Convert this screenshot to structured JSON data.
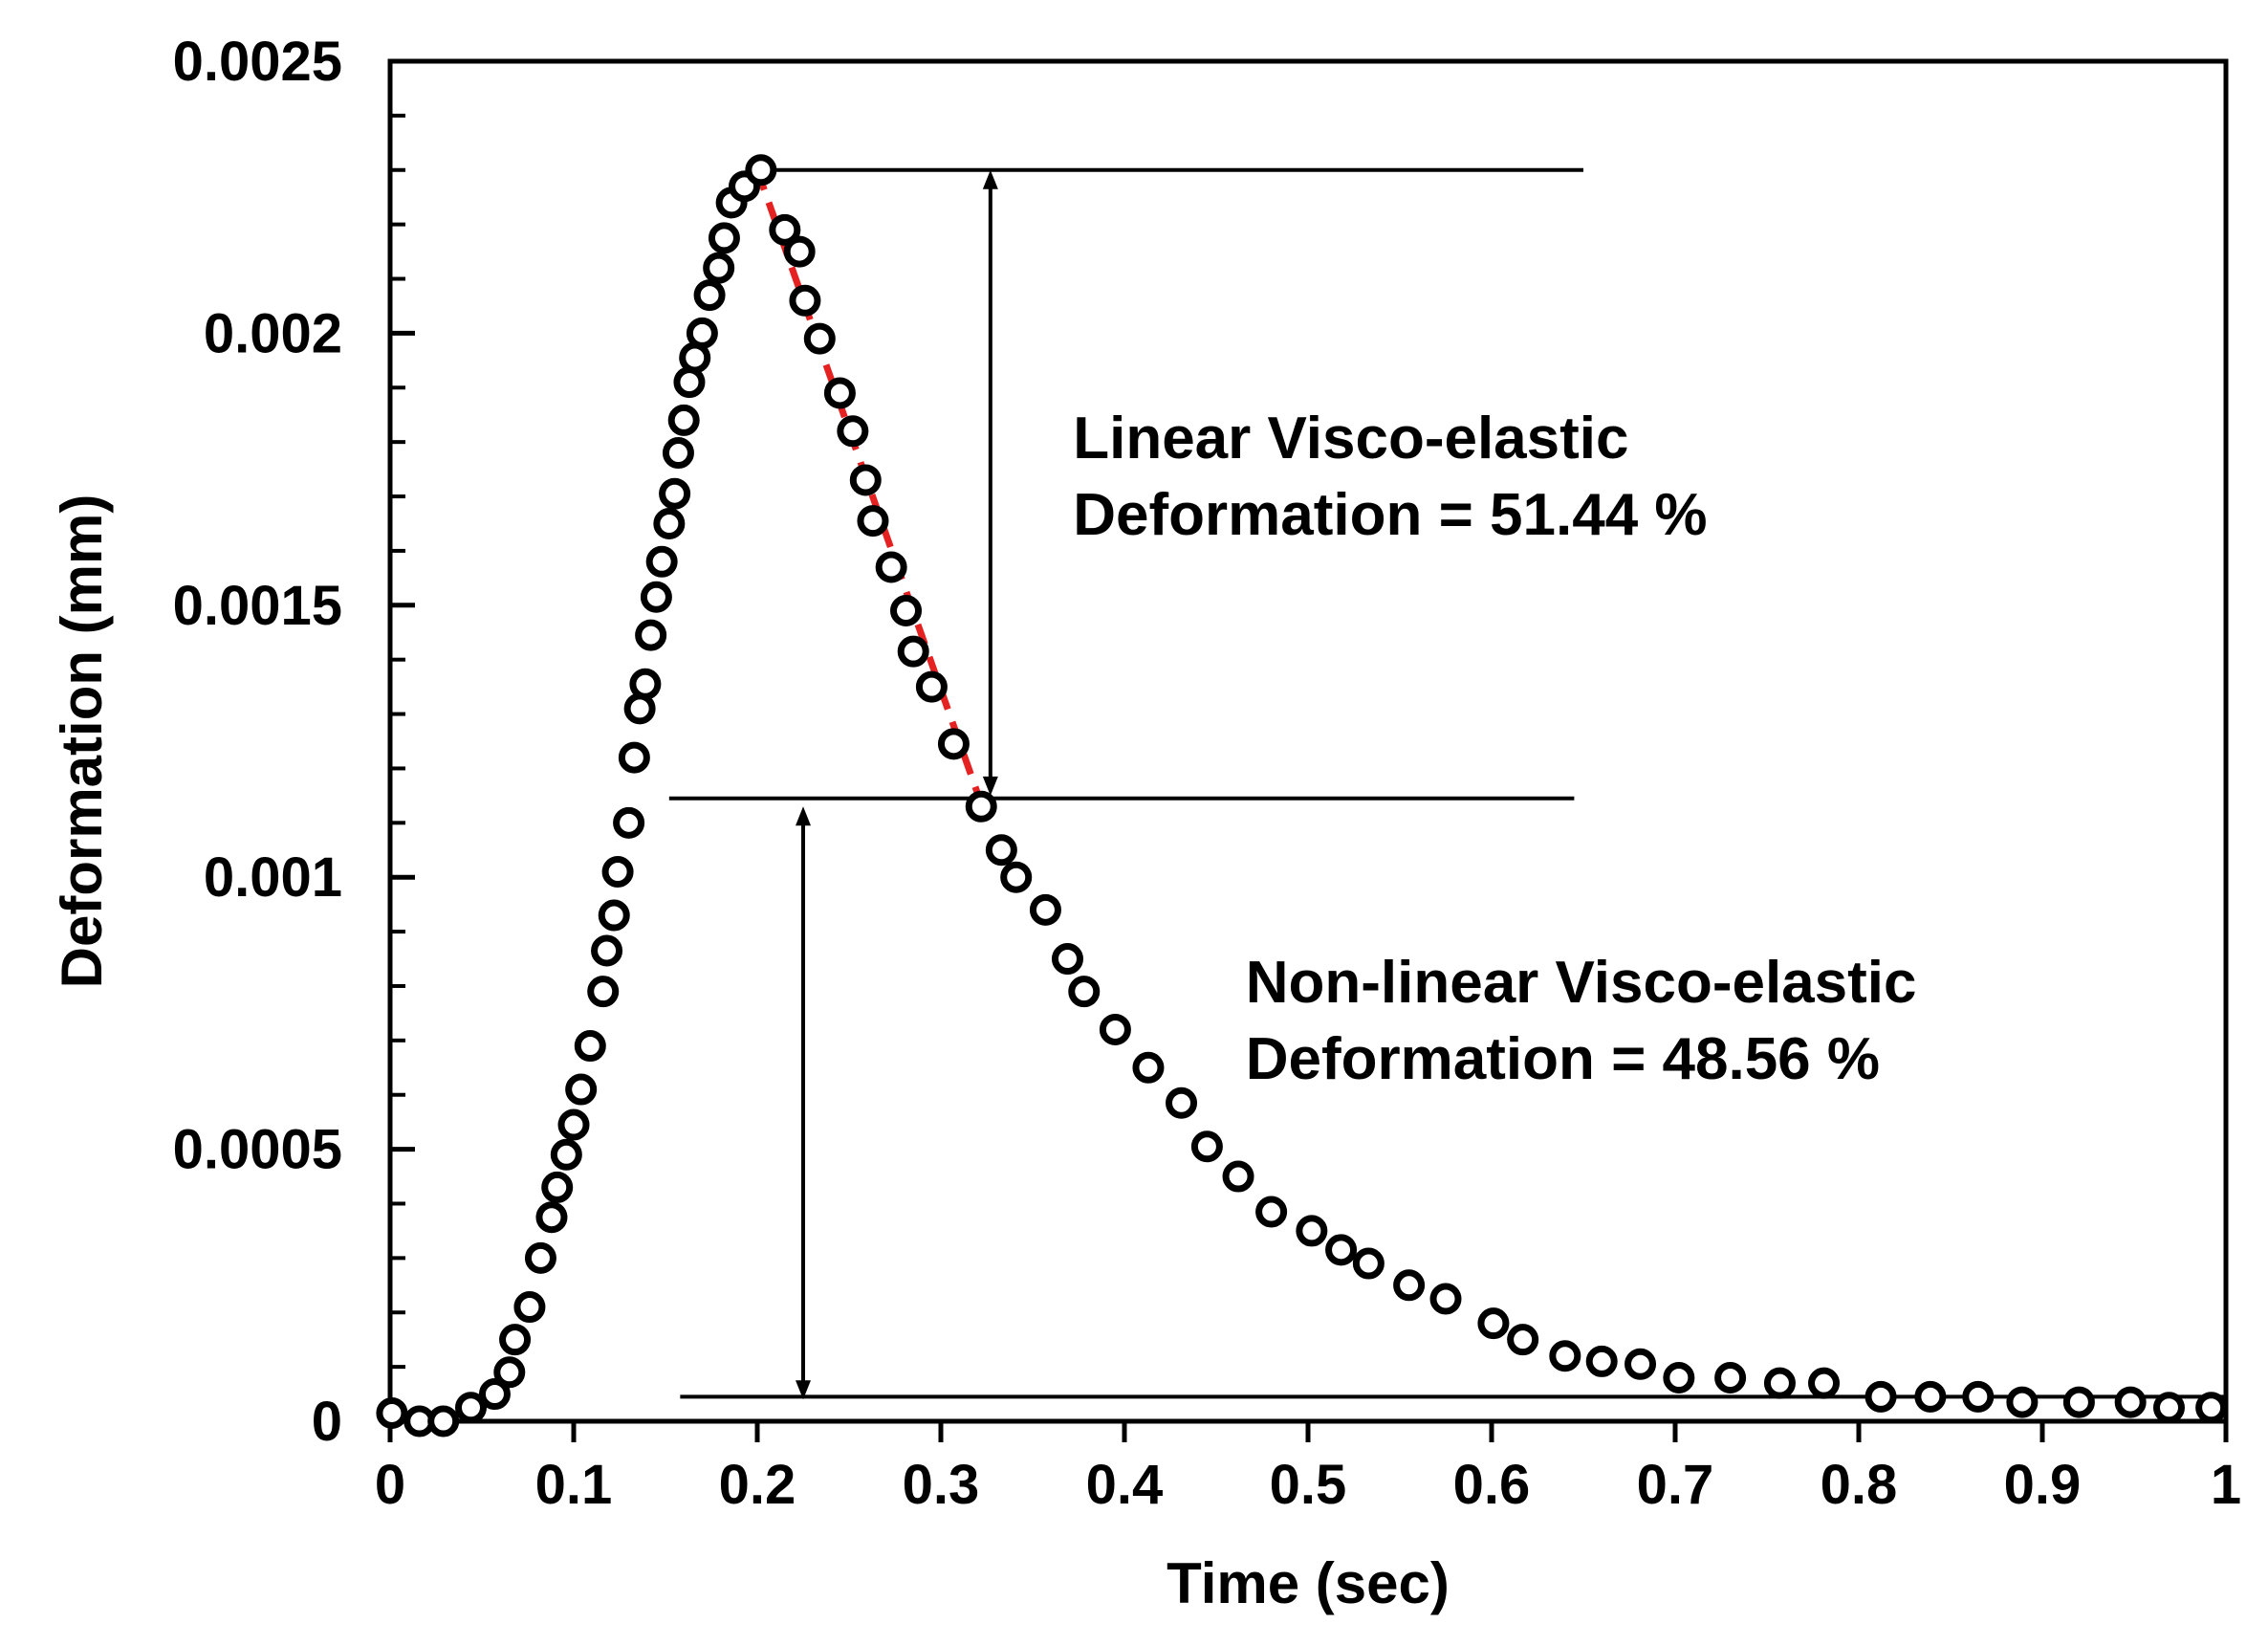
{
  "chart_data": {
    "type": "scatter",
    "xlabel": "Time (sec)",
    "ylabel": "Deformation (mm)",
    "xlim": [
      0,
      1
    ],
    "ylim": [
      0,
      0.0025
    ],
    "xticks": [
      0,
      0.1,
      0.2,
      0.3,
      0.4,
      0.5,
      0.6,
      0.7,
      0.8,
      0.9,
      1
    ],
    "xtick_labels": [
      "0",
      "0.1",
      "0.2",
      "0.3",
      "0.4",
      "0.5",
      "0.6",
      "0.7",
      "0.8",
      "0.9",
      "1"
    ],
    "yticks": [
      0,
      0.0005,
      0.001,
      0.0015,
      0.002,
      0.0025
    ],
    "ytick_labels": [
      "0",
      "0.0005",
      "0.001",
      "0.0015",
      "0.002",
      "0.0025"
    ],
    "y_minor_step": 0.0001,
    "grid": false,
    "colors": {
      "markers": "#000000",
      "linear_fit": "#e52222",
      "annotations": "#000000"
    },
    "series": [
      {
        "name": "Deformation",
        "marker": "open-circle",
        "points": [
          [
            0.001,
            1.5e-05
          ],
          [
            0.016,
            0.0
          ],
          [
            0.029,
            0.0
          ],
          [
            0.044,
            2.5e-05
          ],
          [
            0.057,
            5e-05
          ],
          [
            0.065,
            9e-05
          ],
          [
            0.068,
            0.00015
          ],
          [
            0.076,
            0.00021
          ],
          [
            0.082,
            0.0003
          ],
          [
            0.088,
            0.000375
          ],
          [
            0.091,
            0.00043
          ],
          [
            0.096,
            0.00049
          ],
          [
            0.1,
            0.000545
          ],
          [
            0.104,
            0.00061
          ],
          [
            0.109,
            0.00069
          ],
          [
            0.116,
            0.00079
          ],
          [
            0.118,
            0.000865
          ],
          [
            0.122,
            0.00093
          ],
          [
            0.124,
            0.00101
          ],
          [
            0.13,
            0.0011
          ],
          [
            0.133,
            0.00122
          ],
          [
            0.136,
            0.00131
          ],
          [
            0.139,
            0.001355
          ],
          [
            0.142,
            0.001445
          ],
          [
            0.145,
            0.001515
          ],
          [
            0.148,
            0.00158
          ],
          [
            0.152,
            0.00165
          ],
          [
            0.155,
            0.001705
          ],
          [
            0.157,
            0.00178
          ],
          [
            0.16,
            0.00184
          ],
          [
            0.163,
            0.00191
          ],
          [
            0.166,
            0.001955
          ],
          [
            0.17,
            0.002
          ],
          [
            0.174,
            0.00207
          ],
          [
            0.179,
            0.00212
          ],
          [
            0.182,
            0.002175
          ],
          [
            0.186,
            0.00224
          ],
          [
            0.193,
            0.00227
          ],
          [
            0.202,
            0.0023
          ],
          [
            0.215,
            0.00219
          ],
          [
            0.223,
            0.00215
          ],
          [
            0.226,
            0.00206
          ],
          [
            0.234,
            0.00199
          ],
          [
            0.245,
            0.00189
          ],
          [
            0.252,
            0.00182
          ],
          [
            0.259,
            0.00173
          ],
          [
            0.263,
            0.001655
          ],
          [
            0.273,
            0.00157
          ],
          [
            0.281,
            0.00149
          ],
          [
            0.285,
            0.001415
          ],
          [
            0.295,
            0.00135
          ],
          [
            0.307,
            0.001245
          ],
          [
            0.322,
            0.00113
          ],
          [
            0.333,
            0.00105
          ],
          [
            0.341,
            0.001
          ],
          [
            0.357,
            0.00094
          ],
          [
            0.369,
            0.00085
          ],
          [
            0.378,
            0.00079
          ],
          [
            0.395,
            0.00072
          ],
          [
            0.413,
            0.00065
          ],
          [
            0.431,
            0.000585
          ],
          [
            0.445,
            0.000505
          ],
          [
            0.462,
            0.00045
          ],
          [
            0.48,
            0.000385
          ],
          [
            0.502,
            0.00035
          ],
          [
            0.518,
            0.000315
          ],
          [
            0.533,
            0.00029
          ],
          [
            0.555,
            0.00025
          ],
          [
            0.575,
            0.000225
          ],
          [
            0.601,
            0.00018
          ],
          [
            0.617,
            0.00015
          ],
          [
            0.64,
            0.00012
          ],
          [
            0.66,
            0.00011
          ],
          [
            0.681,
            0.000105
          ],
          [
            0.702,
            8e-05
          ],
          [
            0.73,
            8e-05
          ],
          [
            0.757,
            7e-05
          ],
          [
            0.781,
            7e-05
          ],
          [
            0.812,
            4.5e-05
          ],
          [
            0.839,
            4.5e-05
          ],
          [
            0.865,
            4.5e-05
          ],
          [
            0.889,
            3.5e-05
          ],
          [
            0.92,
            3.5e-05
          ],
          [
            0.948,
            3.5e-05
          ],
          [
            0.969,
            2.5e-05
          ],
          [
            0.992,
            2.5e-05
          ]
        ]
      },
      {
        "name": "Linear region fit",
        "style": "dashed-line",
        "points": [
          [
            0.2,
            0.0023
          ],
          [
            0.322,
            0.001135
          ]
        ]
      }
    ],
    "reference_lines": [
      {
        "name": "peak-level",
        "y": 0.0023,
        "x_range": [
          0.205,
          0.65
        ]
      },
      {
        "name": "transition-level",
        "y": 0.001145,
        "x_range": [
          0.152,
          0.645
        ]
      },
      {
        "name": "baseline-level",
        "y": 4.5e-05,
        "x_range": [
          0.158,
          1.0
        ]
      }
    ],
    "arrows": [
      {
        "name": "linear-arrow",
        "x": 0.327,
        "y_range": [
          0.0023,
          0.00115
        ]
      },
      {
        "name": "nonlinear-arrow",
        "x": 0.225,
        "y_range": [
          0.00113,
          4e-05
        ]
      }
    ],
    "annotations": [
      {
        "name": "linear-annotation",
        "lines": [
          "Linear Visco-elastic",
          "Deformation = 51.44 %"
        ],
        "anchor": [
          0.372,
          0.00177
        ]
      },
      {
        "name": "nonlinear-annotation",
        "lines": [
          "Non-linear Visco-elastic",
          "Deformation = 48.56 %"
        ],
        "anchor": [
          0.466,
          0.00077
        ]
      }
    ]
  }
}
